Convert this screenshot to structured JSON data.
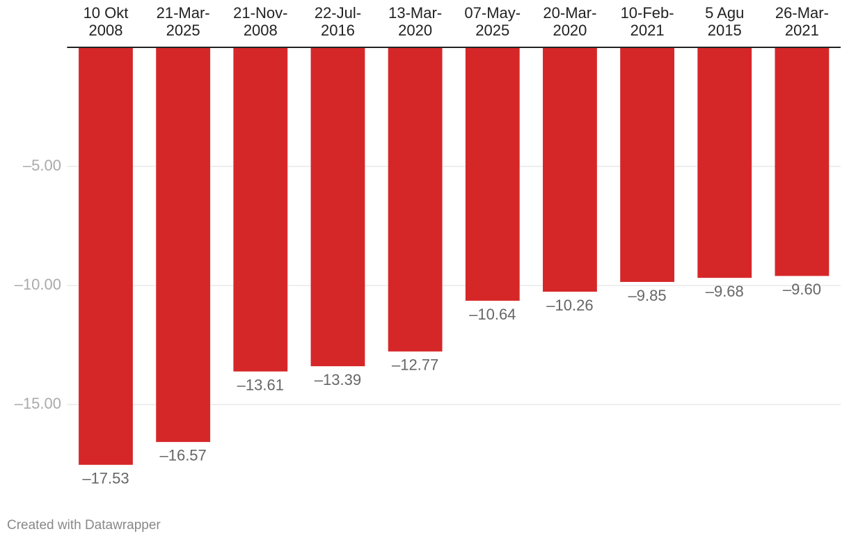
{
  "chart_data": {
    "type": "bar",
    "categories": [
      "10 Okt 2008",
      "21-Mar-2025",
      "21-Nov-2008",
      "22-Jul-2016",
      "13-Mar-2020",
      "07-May-2025",
      "20-Mar-2020",
      "10-Feb-2021",
      "5 Agu 2015",
      "26-Mar-2021"
    ],
    "values": [
      -17.53,
      -16.57,
      -13.61,
      -13.39,
      -12.77,
      -10.64,
      -10.26,
      -9.85,
      -9.68,
      -9.6
    ],
    "value_labels": [
      "–17.53",
      "–16.57",
      "–13.61",
      "–13.39",
      "–12.77",
      "–10.64",
      "–10.26",
      "–9.85",
      "–9.68",
      "–9.60"
    ],
    "color": "#d62728",
    "ylim": [
      -19,
      0
    ],
    "yticks": [
      {
        "value": -5,
        "label": "–5.00"
      },
      {
        "value": -10,
        "label": "–10.00"
      },
      {
        "value": -15,
        "label": "–15.00"
      }
    ],
    "grid": true,
    "footer": "Created with Datawrapper"
  }
}
